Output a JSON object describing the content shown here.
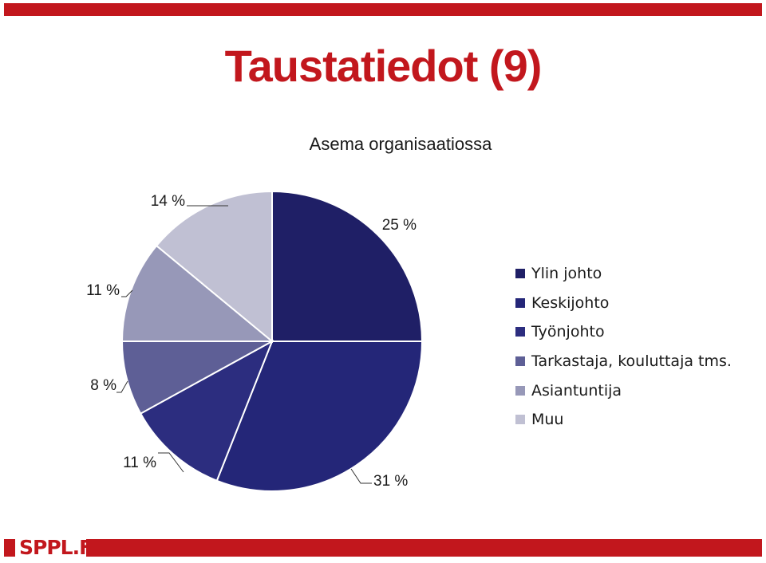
{
  "slide": {
    "title": "Taustatiedot (9)"
  },
  "colors": {
    "brand": "#c2171d",
    "title": "#c2171d"
  },
  "footer": {
    "logo_text": "SPPL.FI"
  },
  "chart_data": {
    "type": "pie",
    "title": "Asema organisaatiossa",
    "categories": [
      "Ylin johto",
      "Keskijohto",
      "Työnjohto",
      "Tarkastaja, kouluttaja tms.",
      "Asiantuntija",
      "Muu"
    ],
    "values": [
      25,
      31,
      11,
      8,
      11,
      14
    ],
    "labels": [
      "25 %",
      "31 %",
      "11 %",
      "8 %",
      "11 %",
      "14 %"
    ],
    "colors": [
      "#1f1f66",
      "#242678",
      "#2c2d7f",
      "#5e5f96",
      "#9798b8",
      "#c0c0d3"
    ],
    "start": "12 o'clock, clockwise",
    "legend_position": "right"
  }
}
